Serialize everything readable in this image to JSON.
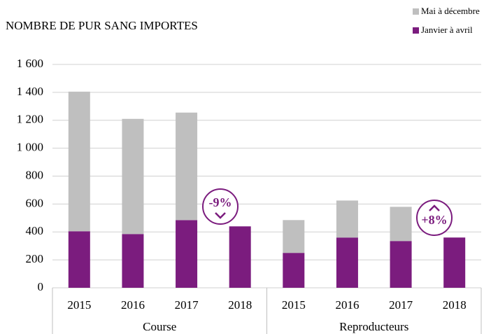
{
  "chart_data": {
    "type": "stacked_bar",
    "title": "NOMBRE DE PUR SANG IMPORTES",
    "categories": [
      "2015",
      "2016",
      "2017",
      "2018",
      "2015",
      "2016",
      "2017",
      "2018"
    ],
    "groups": [
      "Course",
      "Reproducteurs"
    ],
    "series": [
      {
        "name": "Janvier à avril",
        "color": "#7b1c7e",
        "values": [
          405,
          385,
          485,
          440,
          250,
          360,
          335,
          360
        ]
      },
      {
        "name": "Mai à décembre",
        "color": "#bfbfbf",
        "values": [
          1000,
          825,
          770,
          null,
          235,
          265,
          245,
          null
        ]
      }
    ],
    "ylim": [
      0,
      1600
    ],
    "yticks": [
      0,
      200,
      400,
      600,
      800,
      {
        "value": 1000,
        "label": "1 000"
      },
      {
        "value": 1200,
        "label": "1 200"
      },
      {
        "value": 1400,
        "label": "1 400"
      },
      {
        "value": 1600,
        "label": "1 600"
      }
    ],
    "grid": true,
    "legend": "top-right",
    "annotations": [
      {
        "text": "-9%",
        "direction": "down"
      },
      {
        "text": "+8%",
        "direction": "up"
      }
    ]
  }
}
